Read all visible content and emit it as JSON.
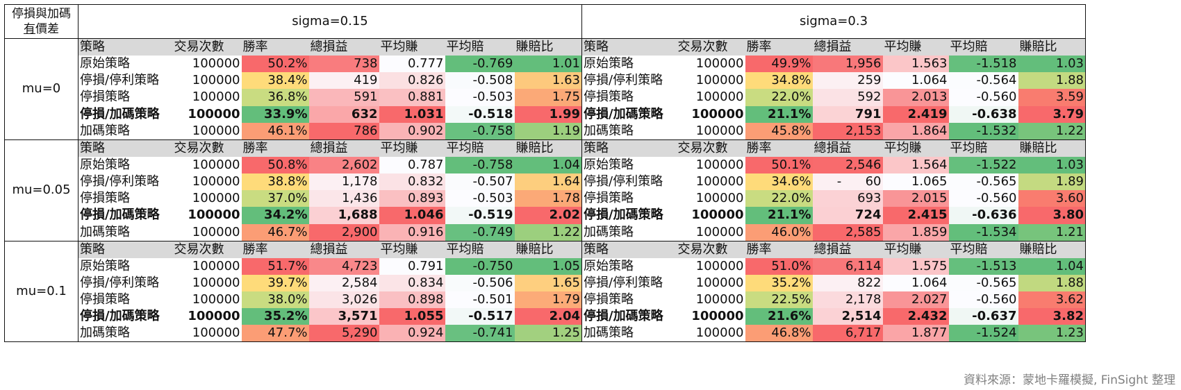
{
  "corner": {
    "line1": "停損與加碼",
    "line2_a": "有",
    "line2_b": "價差"
  },
  "sigmas": [
    "sigma=0.15",
    "sigma=0.3"
  ],
  "headers": [
    "策略",
    "交易次數",
    "勝率",
    "總損益",
    "平均賺",
    "平均賠",
    "賺賠比"
  ],
  "blocks": [
    {
      "mu": "mu=0",
      "rows": [
        {
          "strategy": "原始策略",
          "bold": false,
          "s015": [
            "100000",
            "50.2%",
            "738",
            "0.777",
            "-0.769",
            "1.01"
          ],
          "s03": [
            "100000",
            "49.9%",
            "1,956",
            "1.563",
            "-1.518",
            "1.03"
          ]
        },
        {
          "strategy": "停損/停利策略",
          "bold": false,
          "s015": [
            "100000",
            "38.4%",
            "419",
            "0.826",
            "-0.508",
            "1.63"
          ],
          "s03": [
            "100000",
            "34.8%",
            "259",
            "1.064",
            "-0.564",
            "1.88"
          ]
        },
        {
          "strategy": "停損策略",
          "bold": false,
          "s015": [
            "100000",
            "36.8%",
            "591",
            "0.881",
            "-0.503",
            "1.75"
          ],
          "s03": [
            "100000",
            "22.0%",
            "592",
            "2.013",
            "-0.560",
            "3.59"
          ]
        },
        {
          "strategy": "停損/加碼策略",
          "bold": true,
          "s015": [
            "100000",
            "33.9%",
            "632",
            "1.031",
            "-0.518",
            "1.99"
          ],
          "s03": [
            "100000",
            "21.1%",
            "791",
            "2.419",
            "-0.638",
            "3.79"
          ]
        },
        {
          "strategy": "加碼策略",
          "bold": false,
          "s015": [
            "100000",
            "46.1%",
            "786",
            "0.902",
            "-0.758",
            "1.19"
          ],
          "s03": [
            "100000",
            "45.8%",
            "2,153",
            "1.864",
            "-1.532",
            "1.22"
          ]
        }
      ]
    },
    {
      "mu": "mu=0.05",
      "rows": [
        {
          "strategy": "原始策略",
          "bold": false,
          "s015": [
            "100000",
            "50.8%",
            "2,602",
            "0.787",
            "-0.758",
            "1.04"
          ],
          "s03": [
            "100000",
            "50.1%",
            "2,546",
            "1.564",
            "-1.522",
            "1.03"
          ]
        },
        {
          "strategy": "停損/停利策略",
          "bold": false,
          "s015": [
            "100000",
            "38.8%",
            "1,178",
            "0.832",
            "-0.507",
            "1.64"
          ],
          "s03": [
            "100000",
            "34.6%",
            "-      60",
            "1.065",
            "-0.565",
            "1.89"
          ]
        },
        {
          "strategy": "停損策略",
          "bold": false,
          "s015": [
            "100000",
            "37.0%",
            "1,436",
            "0.893",
            "-0.503",
            "1.78"
          ],
          "s03": [
            "100000",
            "22.0%",
            "693",
            "2.015",
            "-0.560",
            "3.60"
          ]
        },
        {
          "strategy": "停損/加碼策略",
          "bold": true,
          "s015": [
            "100000",
            "34.2%",
            "1,688",
            "1.046",
            "-0.519",
            "2.02"
          ],
          "s03": [
            "100000",
            "21.1%",
            "724",
            "2.415",
            "-0.636",
            "3.80"
          ]
        },
        {
          "strategy": "加碼策略",
          "bold": false,
          "s015": [
            "100000",
            "46.7%",
            "2,900",
            "0.916",
            "-0.749",
            "1.22"
          ],
          "s03": [
            "100000",
            "46.0%",
            "2,585",
            "1.859",
            "-1.534",
            "1.21"
          ]
        }
      ]
    },
    {
      "mu": "mu=0.1",
      "rows": [
        {
          "strategy": "原始策略",
          "bold": false,
          "s015": [
            "100000",
            "51.7%",
            "4,723",
            "0.791",
            "-0.750",
            "1.05"
          ],
          "s03": [
            "100000",
            "51.0%",
            "6,114",
            "1.575",
            "-1.513",
            "1.04"
          ]
        },
        {
          "strategy": "停損/停利策略",
          "bold": false,
          "s015": [
            "100000",
            "39.7%",
            "2,584",
            "0.834",
            "-0.506",
            "1.65"
          ],
          "s03": [
            "100000",
            "35.2%",
            "822",
            "1.064",
            "-0.565",
            "1.88"
          ]
        },
        {
          "strategy": "停損策略",
          "bold": false,
          "s015": [
            "100000",
            "38.0%",
            "3,026",
            "0.898",
            "-0.501",
            "1.79"
          ],
          "s03": [
            "100000",
            "22.5%",
            "2,178",
            "2.027",
            "-0.560",
            "3.62"
          ]
        },
        {
          "strategy": "停損/加碼策略",
          "bold": true,
          "s015": [
            "100000",
            "35.2%",
            "3,571",
            "1.055",
            "-0.517",
            "2.04"
          ],
          "s03": [
            "100000",
            "21.6%",
            "2,514",
            "2.432",
            "-0.637",
            "3.82"
          ]
        },
        {
          "strategy": "加碼策略",
          "bold": false,
          "s015": [
            "100000",
            "47.7%",
            "5,290",
            "0.924",
            "-0.741",
            "1.25"
          ],
          "s03": [
            "100000",
            "46.8%",
            "6,717",
            "1.877",
            "-1.524",
            "1.23"
          ]
        }
      ]
    }
  ],
  "cell_colors": {
    "win_rate": [
      "#f8696b",
      "#fedb7a",
      "#c9dc81",
      "#63be7b",
      "#fb9d75"
    ],
    "pnl_high": "#f8696b",
    "pnl_low": "#fcfcff",
    "avg_gain_high": "#f8696b",
    "avg_gain_low": "#fcfcff",
    "avg_loss_high": "#fcfcff",
    "avg_loss_low": "#63be7b",
    "ratio_low": "#63be7b",
    "ratio_mid": "#ffeb84",
    "ratio_high": "#f8696b",
    "header_bg": "#d9d9d9"
  },
  "source": "資料來源：蒙地卡羅模擬, FinSight 整理"
}
